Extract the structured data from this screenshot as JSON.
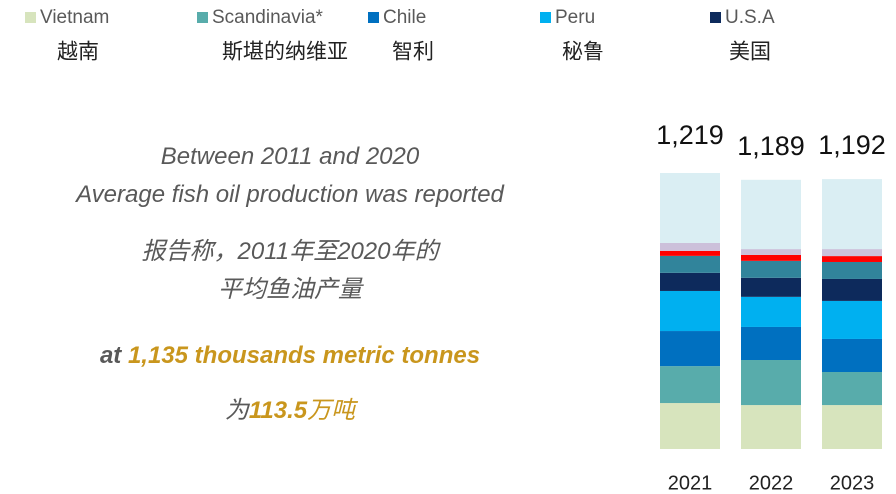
{
  "chart_data": {
    "type": "stacked_bar",
    "categories": [
      "2021",
      "2022",
      "2023"
    ],
    "ylim": [
      0,
      1219
    ],
    "legend_translations": [
      "越南",
      "斯堪的纳维亚",
      "智利",
      "秘鲁",
      "美国"
    ],
    "series": [
      {
        "name": "Vietnam",
        "color": "#d7e4bd",
        "values": [
          203,
          194,
          194
        ]
      },
      {
        "name": "Scandinavia*",
        "color": "#58acab",
        "values": [
          163,
          199,
          146
        ]
      },
      {
        "name": "Chile",
        "color": "#0070c0",
        "values": [
          155,
          146,
          146
        ]
      },
      {
        "name": "Peru",
        "color": "#00b0f0",
        "values": [
          177,
          133,
          168
        ]
      },
      {
        "name": "U.S.A",
        "color": "#0d2a5c",
        "values": [
          80,
          84,
          97
        ]
      },
      {
        "color": "#31849b",
        "values": [
          75,
          75,
          75
        ]
      },
      {
        "color": "#ff0000",
        "values": [
          22,
          26,
          26
        ]
      },
      {
        "color": "#ccc0da",
        "values": [
          35,
          26,
          31
        ]
      },
      {
        "color": "#daeef3",
        "values": [
          309,
          306,
          309
        ]
      }
    ],
    "totals": {
      "values": [
        1219,
        1189,
        1192
      ],
      "value_labels": [
        "1,219",
        "1,189",
        "1,192"
      ]
    }
  },
  "message": {
    "lines": [
      [
        {
          "text": "Between 2011 and 2020"
        }
      ],
      [
        {
          "text": "Average fish oil production was reported"
        }
      ],
      [
        {
          "text": "报告称，2011年至2020年的"
        }
      ],
      [
        {
          "text": "平均鱼油产量"
        }
      ],
      [
        {
          "text": "at "
        },
        {
          "text": "1,135 thousands metric tonnes",
          "highlight": true
        }
      ],
      [
        {
          "text": "为"
        },
        {
          "text": "113.5",
          "highlight": true
        },
        {
          "text": "万吨",
          "highlight": true
        }
      ]
    ]
  }
}
